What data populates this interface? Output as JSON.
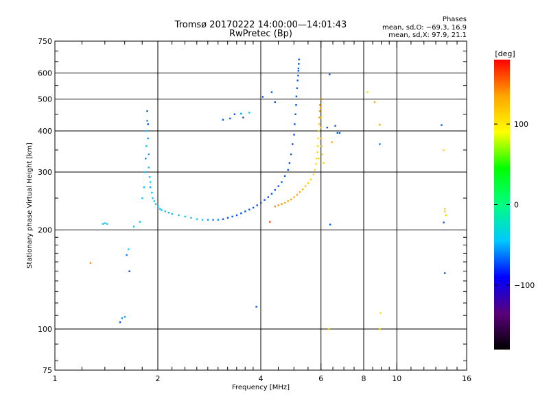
{
  "title": "Tromsø 20170222 14:00:00—14:01:43",
  "subtitle": "RwPretec (Bp)",
  "stats": {
    "heading": "Phases",
    "line_o": "mean, sd,O: −69.3, 16.9",
    "line_x": "mean, sd,X:  97.9, 21.1"
  },
  "colorbar": {
    "label": "[deg]",
    "range": [
      -180,
      180
    ],
    "ticks": [
      {
        "value": 100,
        "label": "100"
      },
      {
        "value": 0,
        "label": "0"
      },
      {
        "value": -100,
        "label": "−100"
      }
    ],
    "stops": [
      "#000000",
      "#5a007a",
      "#0000ff",
      "#00c8ff",
      "#00ff80",
      "#00ff00",
      "#ffff00",
      "#ffa500",
      "#ff0000"
    ]
  },
  "chart_data": {
    "type": "scatter",
    "title": "Tromsø 20170222 14:00:00—14:01:43",
    "subtitle": "RwPretec (Bp)",
    "xlabel": "Frequency [MHz]",
    "ylabel": "Stationary phase Virtual Height [km]",
    "xscale": "log",
    "yscale": "log",
    "xlim": [
      1,
      16
    ],
    "ylim": [
      75,
      750
    ],
    "grid": true,
    "xticks_major": [
      {
        "value": 1,
        "label": "1"
      },
      {
        "value": 2,
        "label": "2"
      },
      {
        "value": 4,
        "label": "4"
      },
      {
        "value": 6,
        "label": "6"
      },
      {
        "value": 8,
        "label": "8"
      },
      {
        "value": 10,
        "label": "10"
      },
      {
        "value": 16,
        "label": "16"
      }
    ],
    "xgrid": [
      2,
      4,
      6,
      8,
      10
    ],
    "xticks_minor": [
      1.2,
      1.4,
      1.6,
      1.8,
      2.2,
      2.4,
      2.6,
      2.8,
      3,
      3.2,
      3.4,
      3.6,
      3.8,
      4.5,
      5,
      5.5,
      6.5,
      7,
      7.5,
      8.5,
      9,
      9.5,
      11,
      12,
      13,
      14,
      15
    ],
    "yticks_major": [
      {
        "value": 75,
        "label": "75"
      },
      {
        "value": 100,
        "label": "100"
      },
      {
        "value": 200,
        "label": "200"
      },
      {
        "value": 300,
        "label": "300"
      },
      {
        "value": 400,
        "label": "400"
      },
      {
        "value": 500,
        "label": "500"
      },
      {
        "value": 600,
        "label": "600"
      },
      {
        "value": 750,
        "label": "750"
      }
    ],
    "ygrid": [
      100,
      200,
      300,
      400,
      500,
      600
    ],
    "yticks_minor": [
      80,
      90,
      110,
      120,
      130,
      140,
      150,
      160,
      170,
      180,
      190,
      250,
      350,
      450,
      550,
      650,
      700
    ],
    "color_by": "phase [deg]",
    "points_f": [
      1.27,
      1.38,
      1.4,
      1.42,
      1.55,
      1.57,
      1.6,
      1.62,
      1.64,
      1.65,
      1.7,
      1.77,
      1.8,
      1.82,
      1.83,
      1.84,
      1.85,
      1.85,
      1.86,
      1.86,
      1.87,
      1.87,
      1.88,
      1.88,
      1.89,
      1.9,
      1.9,
      1.92,
      1.93,
      1.95,
      1.97,
      2.0,
      2.03,
      2.05,
      2.1,
      2.15,
      2.2,
      2.3,
      2.4,
      2.5,
      2.6,
      2.7,
      2.8,
      2.9,
      3.0,
      3.1,
      3.2,
      3.3,
      3.4,
      3.5,
      3.6,
      3.7,
      3.8,
      3.9,
      4.0,
      4.1,
      4.2,
      4.3,
      4.4,
      4.5,
      4.6,
      4.7,
      4.8,
      4.85,
      4.9,
      4.95,
      5.0,
      5.02,
      5.05,
      5.07,
      5.08,
      5.1,
      5.12,
      5.14,
      5.15,
      5.15,
      5.16,
      5.17,
      4.4,
      4.5,
      4.6,
      4.7,
      4.8,
      4.9,
      5.0,
      5.1,
      5.2,
      5.3,
      5.4,
      5.5,
      5.6,
      5.7,
      5.75,
      5.8,
      5.82,
      5.85,
      5.87,
      5.88,
      5.9,
      5.92,
      5.93,
      5.94,
      5.95,
      5.96,
      5.97,
      5.98,
      5.99,
      6.0,
      6.02,
      6.05,
      6.1,
      3.1,
      3.25,
      3.35,
      3.5,
      3.55,
      3.7,
      4.05,
      4.3,
      4.4,
      3.88,
      6.25,
      6.35,
      6.6,
      6.7,
      6.8,
      6.45,
      6.38,
      4.25,
      8.2,
      8.6,
      8.9,
      8.9,
      8.95,
      8.9,
      13.5,
      13.7,
      13.8,
      13.8,
      13.9,
      13.7,
      13.8,
      6.32,
      5.9
    ],
    "points_h": [
      159,
      209,
      210,
      209,
      105,
      108,
      109,
      168,
      175,
      150,
      205,
      212,
      250,
      270,
      300,
      330,
      360,
      400,
      430,
      460,
      420,
      380,
      340,
      310,
      290,
      280,
      270,
      260,
      250,
      245,
      240,
      235,
      232,
      230,
      228,
      226,
      224,
      222,
      220,
      218,
      216,
      215,
      215,
      215,
      215,
      216,
      218,
      220,
      222,
      225,
      228,
      231,
      234,
      238,
      242,
      247,
      252,
      258,
      265,
      272,
      280,
      292,
      305,
      320,
      340,
      365,
      390,
      420,
      450,
      480,
      510,
      540,
      570,
      590,
      610,
      620,
      640,
      660,
      236,
      238,
      240,
      242,
      245,
      248,
      252,
      256,
      261,
      266,
      272,
      278,
      285,
      295,
      305,
      318,
      330,
      345,
      360,
      380,
      400,
      420,
      440,
      460,
      480,
      500,
      470,
      440,
      410,
      380,
      360,
      340,
      320,
      433,
      437,
      450,
      452,
      440,
      455,
      508,
      525,
      490,
      117,
      410,
      595,
      415,
      395,
      395,
      370,
      208,
      212,
      525,
      490,
      418,
      365,
      112,
      100,
      417,
      350,
      232,
      228,
      222,
      211,
      148,
      100,
      330
    ],
    "points_c": [
      "#ff8c00",
      "#00c8ff",
      "#00c8ff",
      "#00c8ff",
      "#0050ff",
      "#00a0ff",
      "#00a0ff",
      "#0080ff",
      "#00c8ff",
      "#0050ff",
      "#00c8ff",
      "#00c8ff",
      "#00c8ff",
      "#00c8ff",
      "#00c8ff",
      "#0080ff",
      "#00c8ff",
      "#00c8ff",
      "#00a0ff",
      "#0050ff",
      "#0050ff",
      "#00a0ff",
      "#00a0ff",
      "#00c8ff",
      "#00c8ff",
      "#00c8ff",
      "#00a0ff",
      "#00c8ff",
      "#00c8ff",
      "#00c8ff",
      "#00c8ff",
      "#00c8ff",
      "#00c8ff",
      "#00c8ff",
      "#00c8ff",
      "#00c8ff",
      "#00c8ff",
      "#00c8ff",
      "#00c8ff",
      "#00c8ff",
      "#00c8ff",
      "#00c8ff",
      "#00a0ff",
      "#0080ff",
      "#0080ff",
      "#0050ff",
      "#0050ff",
      "#0050ff",
      "#0050ff",
      "#0050ff",
      "#0050ff",
      "#0050ff",
      "#0050ff",
      "#0050ff",
      "#0050ff",
      "#0050ff",
      "#0050ff",
      "#0050ff",
      "#0050ff",
      "#0050ff",
      "#0050ff",
      "#0050ff",
      "#0050ff",
      "#0050ff",
      "#0050ff",
      "#0050ff",
      "#0050ff",
      "#0050ff",
      "#0050ff",
      "#0050ff",
      "#0050ff",
      "#0050ff",
      "#0050ff",
      "#0050ff",
      "#0050ff",
      "#0050ff",
      "#0050ff",
      "#0050ff",
      "#ff8c00",
      "#ff8c00",
      "#ff8c00",
      "#ffa500",
      "#ffa500",
      "#ffa500",
      "#ffa500",
      "#ffa500",
      "#ffb400",
      "#ffb400",
      "#ffc800",
      "#ffc800",
      "#ffd700",
      "#ffd700",
      "#ffd700",
      "#ffd700",
      "#ffd700",
      "#ffd700",
      "#ffd700",
      "#ffd700",
      "#ffc800",
      "#ffc800",
      "#ffa500",
      "#ffa500",
      "#ffa500",
      "#ffa500",
      "#ffb400",
      "#ffb400",
      "#ffc800",
      "#ffc800",
      "#ffc800",
      "#ffd700",
      "#ffd700",
      "#0050ff",
      "#0050ff",
      "#0050ff",
      "#00a0ff",
      "#0050ff",
      "#00c8ff",
      "#0050ff",
      "#0050ff",
      "#0050ff",
      "#0050ff",
      "#0050ff",
      "#0050ff",
      "#0050ff",
      "#0050ff",
      "#0050ff",
      "#ffa500",
      "#0050ff",
      "#ff4500",
      "#ffd700",
      "#ffa500",
      "#ffa500",
      "#0080ff",
      "#ffd700",
      "#ffd700",
      "#0050ff",
      "#ffd700",
      "#ffd700",
      "#ffd700",
      "#ffd700",
      "#0050ff",
      "#0050ff",
      "#ffd700",
      "#ffd700"
    ]
  }
}
